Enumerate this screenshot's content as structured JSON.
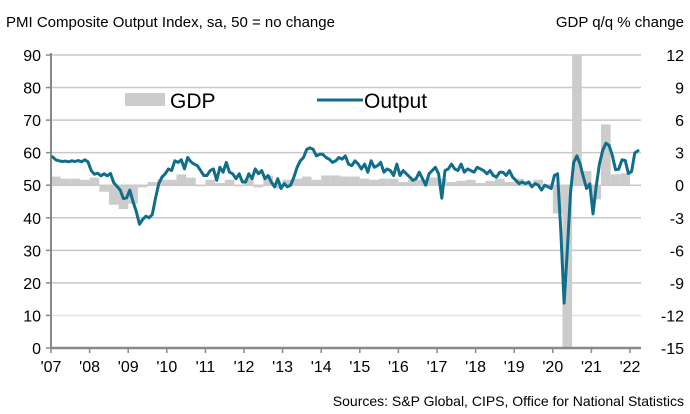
{
  "chart_data": {
    "type": "bar+line",
    "title_left": "PMI Composite Output Index, sa, 50 = no change",
    "title_right": "GDP q/q % change",
    "source": "Sources: S&P Global, CIPS, Office for National Statistics",
    "grid": true,
    "legend": {
      "placement": "top-left",
      "entries": [
        {
          "name": "GDP",
          "kind": "bar",
          "color": "#cccccc"
        },
        {
          "name": "Output",
          "kind": "line",
          "color": "#106e8a"
        }
      ]
    },
    "y_left": {
      "min": 0,
      "max": 90,
      "ticks": [
        "90",
        "80",
        "70",
        "60",
        "50",
        "40",
        "30",
        "20",
        "10",
        "0"
      ]
    },
    "y_right": {
      "min": -15,
      "max": 12,
      "ticks": [
        "12",
        "9",
        "6",
        "3",
        "0",
        "-3",
        "-6",
        "-9",
        "-12",
        "-15"
      ]
    },
    "x": {
      "start": 2007.0,
      "end": 2022.25,
      "ticks": [
        "'07",
        "'08",
        "'09",
        "'10",
        "'11",
        "'12",
        "'13",
        "'14",
        "'15",
        "'16",
        "'17",
        "'18",
        "'19",
        "'20",
        "'21",
        "'22"
      ]
    },
    "series": [
      {
        "name": "GDP",
        "axis": "right",
        "frequency": "quarterly",
        "start": 2007.0,
        "values": [
          0.8,
          0.6,
          0.6,
          0.5,
          0.7,
          -0.6,
          -1.8,
          -2.2,
          -1.7,
          -0.2,
          0.3,
          0.5,
          0.5,
          1.0,
          0.7,
          -0.1,
          0.5,
          0.2,
          0.5,
          -0.1,
          0.6,
          -0.2,
          0.9,
          -0.3,
          0.5,
          0.6,
          0.8,
          0.5,
          0.9,
          0.9,
          0.8,
          0.8,
          0.6,
          0.5,
          0.6,
          0.6,
          0.3,
          0.5,
          0.5,
          0.7,
          0.6,
          0.3,
          0.4,
          0.5,
          0.2,
          0.4,
          0.6,
          0.3,
          0.6,
          -0.1,
          0.5,
          0.1,
          -2.6,
          -20.0,
          17.0,
          1.3,
          -1.3,
          5.6,
          1.0,
          1.1
        ]
      },
      {
        "name": "Output",
        "axis": "left",
        "frequency": "monthly",
        "start": 2007.0,
        "values": [
          58.7,
          57.8,
          57.5,
          57.3,
          57.4,
          57.2,
          57.5,
          57.3,
          57.6,
          57.2,
          57.8,
          57.2,
          54.5,
          53.4,
          53.7,
          52.9,
          53.5,
          52.9,
          53.6,
          50.8,
          49.7,
          48.5,
          45.9,
          46.1,
          48.5,
          45.0,
          42.0,
          38.0,
          39.5,
          40.5,
          40.0,
          41.0,
          46.0,
          50.5,
          52.5,
          53.5,
          55.0,
          54.5,
          57.5,
          57.0,
          57.8,
          55.0,
          58.5,
          57.2,
          56.5,
          56.0,
          54.5,
          53.0,
          53.0,
          54.5,
          55.0,
          51.5,
          55.5,
          54.0,
          57.0,
          54.0,
          53.5,
          52.0,
          53.5,
          51.0,
          51.0,
          53.5,
          52.0,
          55.0,
          53.5,
          54.5,
          52.0,
          53.0,
          51.0,
          49.5,
          52.0,
          49.0,
          50.5,
          49.5,
          50.0,
          52.5,
          55.5,
          57.5,
          58.5,
          61.0,
          61.5,
          61.0,
          59.0,
          59.5,
          59.5,
          58.5,
          58.0,
          57.0,
          57.5,
          58.5,
          58.0,
          59.0,
          56.5,
          56.0,
          57.5,
          56.5,
          55.0,
          56.5,
          54.0,
          57.5,
          55.5,
          56.0,
          57.0,
          54.0,
          55.0,
          54.5,
          53.0,
          56.5,
          53.0,
          54.5,
          53.5,
          52.5,
          51.5,
          52.0,
          54.0,
          52.0,
          50.0,
          53.5,
          54.5,
          55.5,
          53.5,
          46.0,
          54.5,
          55.0,
          56.5,
          55.0,
          54.5,
          56.5,
          54.0,
          55.0,
          54.5,
          54.0,
          55.5,
          55.0,
          54.5,
          53.5,
          54.5,
          53.0,
          52.5,
          54.0,
          54.0,
          53.0,
          54.5,
          52.5,
          51.5,
          50.5,
          51.0,
          50.5,
          51.0,
          49.5,
          50.5,
          50.0,
          48.5,
          50.0,
          49.5,
          49.0,
          53.0,
          53.5,
          36.0,
          13.8,
          30.0,
          47.7,
          57.0,
          59.0,
          56.5,
          52.5,
          49.0,
          50.4,
          41.2,
          49.6,
          56.4,
          60.7,
          62.9,
          62.2,
          59.2,
          54.8,
          54.9,
          57.8,
          57.6,
          53.6,
          54.2,
          59.9,
          60.6
        ]
      }
    ]
  }
}
